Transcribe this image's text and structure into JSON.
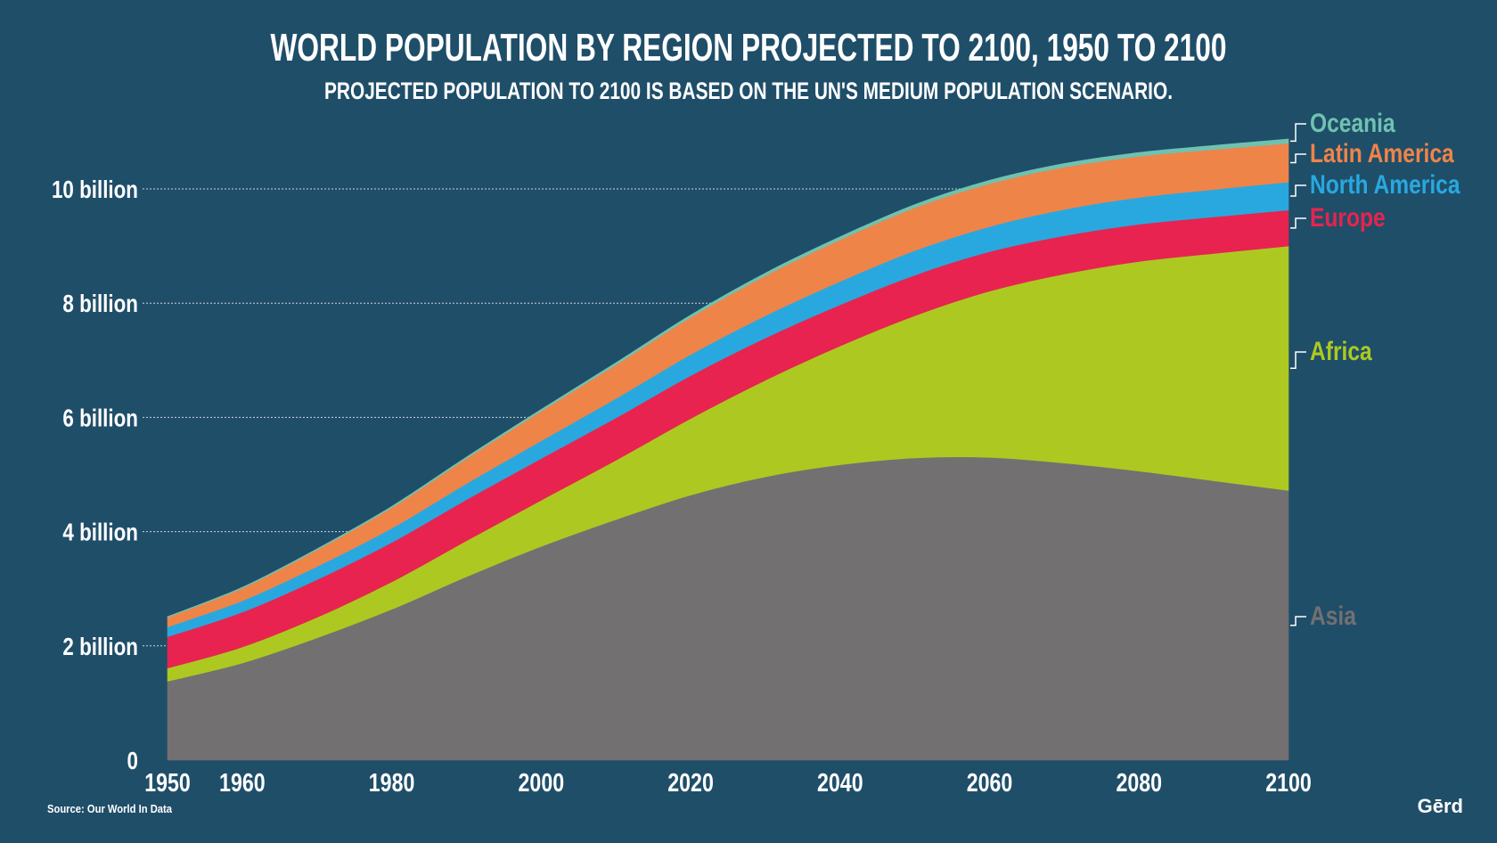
{
  "chart_data": {
    "type": "area",
    "stacked": true,
    "title": "WORLD POPULATION BY REGION PROJECTED TO 2100, 1950 TO 2100",
    "subtitle": "PROJECTED POPULATION TO 2100 IS BASED ON THE UN'S MEDIUM POPULATION SCENARIO.",
    "xlabel": "",
    "ylabel": "",
    "xlim": [
      1950,
      2100
    ],
    "ylim": [
      0,
      11
    ],
    "x_ticks": [
      "1950",
      "1960",
      "1980",
      "2000",
      "2020",
      "2040",
      "2060",
      "2080",
      "2100"
    ],
    "y_ticks": [
      {
        "value": 0,
        "label": "0"
      },
      {
        "value": 2,
        "label": "2 billion"
      },
      {
        "value": 4,
        "label": "4 billion"
      },
      {
        "value": 6,
        "label": "6 billion"
      },
      {
        "value": 8,
        "label": "8 billion"
      },
      {
        "value": 10,
        "label": "10 billion"
      }
    ],
    "grid": true,
    "legend": "right",
    "x": [
      1950,
      1960,
      1970,
      1980,
      1990,
      2000,
      2010,
      2020,
      2030,
      2040,
      2050,
      2060,
      2070,
      2080,
      2090,
      2100
    ],
    "series": [
      {
        "name": "Asia",
        "color": "#737071",
        "values": [
          1.38,
          1.7,
          2.14,
          2.64,
          3.21,
          3.74,
          4.21,
          4.64,
          4.96,
          5.17,
          5.29,
          5.3,
          5.2,
          5.06,
          4.89,
          4.72
        ]
      },
      {
        "name": "Africa",
        "color": "#adc921",
        "values": [
          0.23,
          0.28,
          0.36,
          0.48,
          0.63,
          0.81,
          1.04,
          1.34,
          1.69,
          2.08,
          2.49,
          2.91,
          3.31,
          3.67,
          3.98,
          4.28
        ]
      },
      {
        "name": "Europe",
        "color": "#e8234f",
        "values": [
          0.55,
          0.61,
          0.66,
          0.69,
          0.72,
          0.73,
          0.74,
          0.75,
          0.74,
          0.72,
          0.71,
          0.69,
          0.67,
          0.65,
          0.64,
          0.63
        ]
      },
      {
        "name": "North America",
        "color": "#29a8df",
        "values": [
          0.17,
          0.2,
          0.23,
          0.25,
          0.28,
          0.31,
          0.34,
          0.37,
          0.39,
          0.41,
          0.43,
          0.44,
          0.46,
          0.47,
          0.48,
          0.49
        ]
      },
      {
        "name": "Latin America",
        "color": "#ef8449",
        "values": [
          0.17,
          0.22,
          0.29,
          0.36,
          0.44,
          0.52,
          0.59,
          0.65,
          0.7,
          0.73,
          0.75,
          0.75,
          0.74,
          0.72,
          0.7,
          0.68
        ]
      },
      {
        "name": "Oceania",
        "color": "#6fc2b0",
        "values": [
          0.013,
          0.016,
          0.02,
          0.023,
          0.027,
          0.031,
          0.037,
          0.043,
          0.048,
          0.053,
          0.057,
          0.061,
          0.065,
          0.068,
          0.071,
          0.075
        ]
      }
    ],
    "source": "Source: Our World In Data"
  },
  "brand": "Gērd"
}
